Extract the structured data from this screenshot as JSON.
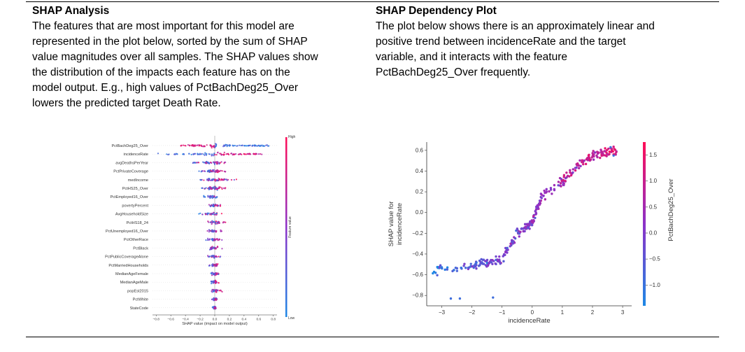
{
  "left": {
    "heading": "SHAP Analysis",
    "lines": [
      "The features that are most important for this model are",
      "represented in the plot below, sorted by the sum of SHAP",
      "value magnitudes over all samples. The SHAP values show",
      "the distribution of the impacts each feature has on the",
      "model output. E.g., high values of PctBachDeg25_Over",
      "lowers the predicted target Death Rate."
    ]
  },
  "right": {
    "heading": "SHAP Dependency Plot",
    "lines": [
      "The plot below shows there is an approximately linear and",
      "positive trend between incidenceRate and the target",
      "variable, and it interacts with the feature",
      "PctBachDeg25_Over frequently."
    ]
  },
  "colors": {
    "low": "#1e88e5",
    "high": "#ff0d57"
  },
  "chart_data": [
    {
      "type": "scatter",
      "subtype": "beeswarm",
      "title": "",
      "xlabel": "SHAP value (impact on model output)",
      "xlim": [
        -0.85,
        0.85
      ],
      "xticks": [
        "−0.8",
        "−0.6",
        "−0.4",
        "−0.2",
        "0.0",
        "0.2",
        "0.4",
        "0.6",
        "0.8"
      ],
      "colorbar": {
        "label": "Feature value",
        "top": "High",
        "bottom": "Low"
      },
      "features": [
        {
          "name": "PctBachDeg25_Over",
          "min": -0.5,
          "max": 0.75
        },
        {
          "name": "incidenceRate",
          "min": -0.8,
          "max": 0.65
        },
        {
          "name": "avgDeathsPerYear",
          "min": -0.3,
          "max": 0.15
        },
        {
          "name": "PctPrivateCoverage",
          "min": -0.22,
          "max": 0.15
        },
        {
          "name": "medIncome",
          "min": -0.2,
          "max": 0.3
        },
        {
          "name": "PctHS25_Over",
          "min": -0.18,
          "max": 0.15
        },
        {
          "name": "PctEmployed16_Over",
          "min": -0.15,
          "max": 0.12
        },
        {
          "name": "povertyPercent",
          "min": -0.1,
          "max": 0.1
        },
        {
          "name": "AvgHouseholdSize",
          "min": -0.22,
          "max": 0.1
        },
        {
          "name": "PctHS18_24",
          "min": -0.1,
          "max": 0.15
        },
        {
          "name": "PctUnemployed16_Over",
          "min": -0.1,
          "max": 0.1
        },
        {
          "name": "PctOtherRace",
          "min": -0.12,
          "max": 0.1
        },
        {
          "name": "PctBlack",
          "min": -0.12,
          "max": 0.1
        },
        {
          "name": "PctPublicCoverageAlone",
          "min": -0.1,
          "max": 0.08
        },
        {
          "name": "PctMarriedHouseholds",
          "min": -0.08,
          "max": 0.08
        },
        {
          "name": "MedianAgeFemale",
          "min": -0.06,
          "max": 0.06
        },
        {
          "name": "MedianAgeMale",
          "min": -0.05,
          "max": 0.06
        },
        {
          "name": "popEst2015",
          "min": -0.05,
          "max": 0.12
        },
        {
          "name": "PctWhite",
          "min": -0.04,
          "max": 0.04
        },
        {
          "name": "StateCode",
          "min": -0.03,
          "max": 0.03
        }
      ]
    },
    {
      "type": "scatter",
      "title": "",
      "xlabel": "incidenceRate",
      "ylabel": "SHAP value for\nincidenceRate",
      "xlim": [
        -3.5,
        3.3
      ],
      "ylim": [
        -0.9,
        0.68
      ],
      "xticks": [
        "−3",
        "−2",
        "−1",
        "0",
        "1",
        "2",
        "3"
      ],
      "yticks": [
        "0.6",
        "0.4",
        "0.2",
        "0.0",
        "−0.2",
        "−0.4",
        "−0.6",
        "−0.8"
      ],
      "colorbar": {
        "label": "PctBachDeg25_Over",
        "range": [
          -1.4,
          1.75
        ],
        "ticks": [
          "1.5",
          "1.0",
          "0.5",
          "0.0",
          "−0.5",
          "−1.0"
        ]
      },
      "trend": [
        [
          -3.3,
          -0.55
        ],
        [
          -2.5,
          -0.55
        ],
        [
          -1.8,
          -0.5
        ],
        [
          -1,
          -0.45
        ],
        [
          -0.5,
          -0.2
        ],
        [
          0,
          -0.1
        ],
        [
          0.3,
          0.15
        ],
        [
          1,
          0.3
        ],
        [
          1.5,
          0.45
        ],
        [
          2,
          0.55
        ],
        [
          2.8,
          0.6
        ]
      ]
    }
  ]
}
